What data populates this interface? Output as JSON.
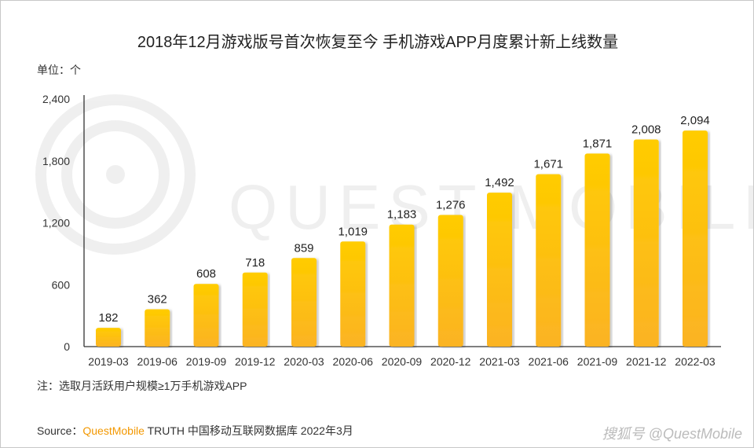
{
  "chart_data": {
    "type": "bar",
    "title": "2018年12月游戏版号首次恢复至今 手机游戏APP月度累计新上线数量",
    "unit_label": "单位：个",
    "categories": [
      "2019-03",
      "2019-06",
      "2019-09",
      "2019-12",
      "2020-03",
      "2020-06",
      "2020-09",
      "2020-12",
      "2021-03",
      "2021-06",
      "2021-09",
      "2021-12",
      "2022-03"
    ],
    "values": [
      182,
      362,
      608,
      718,
      859,
      1019,
      1183,
      1276,
      1492,
      1671,
      1871,
      2008,
      2094
    ],
    "data_labels": [
      "182",
      "362",
      "608",
      "718",
      "859",
      "1,019",
      "1,183",
      "1,276",
      "1,492",
      "1,671",
      "1,871",
      "2,008",
      "2,094"
    ],
    "yticks": [
      0,
      600,
      1200,
      1800,
      2400
    ],
    "ytick_labels": [
      "0",
      "600",
      "1,200",
      "1,800",
      "2,400"
    ],
    "ylim": [
      0,
      2400
    ],
    "grid": false,
    "bar_color_top": "#ffcc00",
    "bar_color_bottom": "#fbb324"
  },
  "note": "注：选取月活跃用户规模≥1万手机游戏APP",
  "source": {
    "prefix": "Source：",
    "brand": "QuestMobile",
    "rest": " TRUTH 中国移动互联网数据库 2022年3月"
  },
  "watermark": {
    "background": "QUEST MOBILE",
    "corner": "搜狐号 @QuestMobile"
  }
}
